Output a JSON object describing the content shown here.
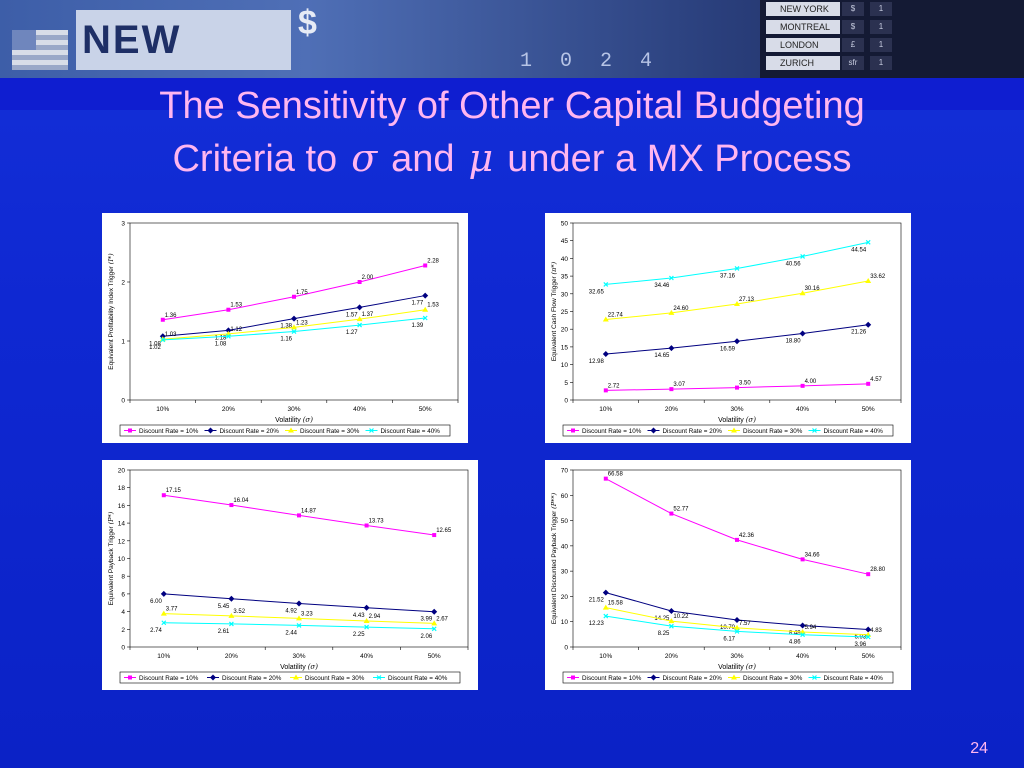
{
  "slide": {
    "title_line1": "The Sensitivity of Other Capital Budgeting",
    "title_line2_a": "Criteria to",
    "title_sigma": "σ",
    "title_line2_b": "and",
    "title_mu": "μ",
    "title_line2_c": "under a MX Process",
    "page_number": "24"
  },
  "banner": {
    "city": "NEW YORK",
    "currency": "$",
    "ticker": "1 0 2 4",
    "board_cities": [
      "NEW YORK",
      "MONTREAL",
      "LONDON",
      "ZURICH"
    ],
    "board_symbols": [
      "$",
      "$",
      "£",
      "sfr"
    ]
  },
  "colors": {
    "series": [
      "#ff00ff",
      "#000080",
      "#ffff00",
      "#00ffff"
    ],
    "title": "#ffb6f0"
  },
  "chart_data": [
    {
      "type": "line",
      "categories": [
        "10%",
        "20%",
        "30%",
        "40%",
        "50%"
      ],
      "xlabel": "Volatility",
      "xlabel_sym": "(σ)",
      "ylabel": "Equivalent Profitability Index Trigger",
      "ylabel_sym": "(I*)",
      "ylim": [
        0,
        3
      ],
      "yticks": [
        0,
        1,
        2,
        3
      ],
      "series": [
        {
          "name": "Discount Rate = 10%",
          "values": [
            1.36,
            1.53,
            1.75,
            2.0,
            2.28
          ],
          "labels": [
            "1.36",
            "1.53",
            "1.75",
            "2.00",
            "2.28"
          ]
        },
        {
          "name": "Discount Rate = 20%",
          "values": [
            1.08,
            1.18,
            1.38,
            1.57,
            1.77
          ],
          "labels": [
            "1.08",
            "1.18",
            "1.38",
            "1.57",
            "1.77"
          ]
        },
        {
          "name": "Discount Rate = 30%",
          "values": [
            1.03,
            1.12,
            1.23,
            1.37,
            1.53
          ],
          "labels": [
            "1.03",
            "1.12",
            "1.23",
            "1.37",
            "1.53"
          ]
        },
        {
          "name": "Discount Rate = 40%",
          "values": [
            1.02,
            1.08,
            1.16,
            1.27,
            1.39
          ],
          "labels": [
            "1.02",
            "1.08",
            "1.16",
            "1.27",
            "1.39"
          ]
        }
      ],
      "legend": "bottom"
    },
    {
      "type": "line",
      "categories": [
        "10%",
        "20%",
        "30%",
        "40%",
        "50%"
      ],
      "xlabel": "Volatility",
      "xlabel_sym": "(σ)",
      "ylabel": "Equivalent Cash Flow Trigger",
      "ylabel_sym": "(π*)",
      "ylim": [
        0,
        50
      ],
      "yticks": [
        0,
        5,
        10,
        15,
        20,
        25,
        30,
        35,
        40,
        45,
        50
      ],
      "series": [
        {
          "name": "Discount Rate = 10%",
          "values": [
            2.72,
            3.07,
            3.5,
            4.0,
            4.57
          ],
          "labels": [
            "2.72",
            "3.07",
            "3.50",
            "4.00",
            "4.57"
          ]
        },
        {
          "name": "Discount Rate = 20%",
          "values": [
            12.98,
            14.65,
            16.59,
            18.8,
            21.26
          ],
          "labels": [
            "12.98",
            "14.65",
            "16.59",
            "18.80",
            "21.26"
          ]
        },
        {
          "name": "Discount Rate = 30%",
          "values": [
            22.74,
            24.6,
            27.13,
            30.16,
            33.62
          ],
          "labels": [
            "22.74",
            "24.60",
            "27.13",
            "30.16",
            "33.62"
          ]
        },
        {
          "name": "Discount Rate = 40%",
          "values": [
            32.65,
            34.46,
            37.16,
            40.56,
            44.54
          ],
          "labels": [
            "32.65",
            "34.46",
            "37.16",
            "40.56",
            "44.54"
          ]
        }
      ],
      "legend": "bottom"
    },
    {
      "type": "line",
      "categories": [
        "10%",
        "20%",
        "30%",
        "40%",
        "50%"
      ],
      "xlabel": "Volatility",
      "xlabel_sym": "(σ)",
      "ylabel": "Equivalent Payback Trigger",
      "ylabel_sym": "(P*)",
      "ylim": [
        0,
        20
      ],
      "yticks": [
        0,
        2,
        4,
        6,
        8,
        10,
        12,
        14,
        16,
        18,
        20
      ],
      "series": [
        {
          "name": "Discount Rate = 10%",
          "values": [
            17.15,
            16.04,
            14.87,
            13.73,
            12.65
          ],
          "labels": [
            "17.15",
            "16.04",
            "14.87",
            "13.73",
            "12.65"
          ]
        },
        {
          "name": "Discount Rate = 20%",
          "values": [
            6.0,
            5.45,
            4.92,
            4.43,
            3.99
          ],
          "labels": [
            "6.00",
            "5.45",
            "4.92",
            "4.43",
            "3.99"
          ]
        },
        {
          "name": "Discount Rate = 30%",
          "values": [
            3.77,
            3.52,
            3.23,
            2.94,
            2.67
          ],
          "labels": [
            "3.77",
            "3.52",
            "3.23",
            "2.94",
            "2.67"
          ]
        },
        {
          "name": "Discount Rate = 40%",
          "values": [
            2.74,
            2.61,
            2.44,
            2.25,
            2.06
          ],
          "labels": [
            "2.74",
            "2.61",
            "2.44",
            "2.25",
            "2.06"
          ]
        }
      ],
      "legend": "bottom"
    },
    {
      "type": "line",
      "categories": [
        "10%",
        "20%",
        "30%",
        "40%",
        "50%"
      ],
      "xlabel": "Volatility",
      "xlabel_sym": "(σ)",
      "ylabel": "Equivalent Discounted Payback Trigger",
      "ylabel_sym": "(P**)",
      "ylim": [
        0,
        70
      ],
      "yticks": [
        0,
        10,
        20,
        30,
        40,
        50,
        60,
        70
      ],
      "series": [
        {
          "name": "Discount Rate = 10%",
          "values": [
            66.58,
            52.77,
            42.36,
            34.66,
            28.8
          ],
          "labels": [
            "66.58",
            "52.77",
            "42.36",
            "34.66",
            "28.80"
          ]
        },
        {
          "name": "Discount Rate = 20%",
          "values": [
            21.52,
            14.25,
            10.7,
            8.48,
            6.93
          ],
          "labels": [
            "21.52",
            "14.25",
            "10.70",
            "8.48",
            "6.93"
          ]
        },
        {
          "name": "Discount Rate = 30%",
          "values": [
            15.58,
            10.22,
            7.57,
            5.94,
            4.83
          ],
          "labels": [
            "15.58",
            "10.22",
            "7.57",
            "5.94",
            "4.83"
          ]
        },
        {
          "name": "Discount Rate = 40%",
          "values": [
            12.23,
            8.25,
            6.17,
            4.86,
            3.96
          ],
          "labels": [
            "12.23",
            "8.25",
            "6.17",
            "4.86",
            "3.96"
          ]
        }
      ],
      "legend": "bottom"
    }
  ]
}
